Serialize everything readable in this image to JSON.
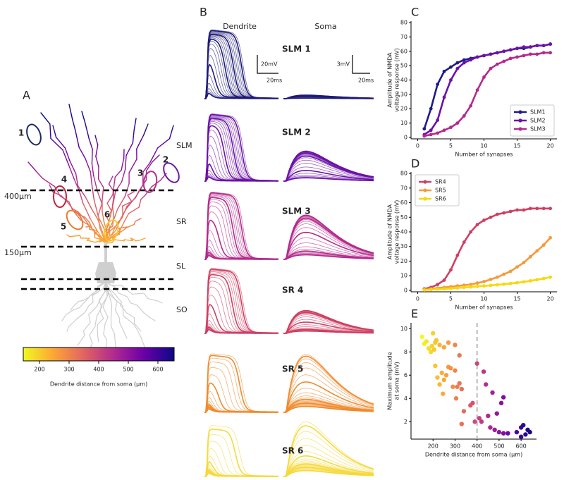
{
  "panel_labels": [
    "A",
    "B",
    "C",
    "D",
    "E"
  ],
  "neuron": {
    "layers": [
      "SLM",
      "SR",
      "SL",
      "SO"
    ],
    "depths": [
      "400µm",
      "150µm"
    ],
    "sites": [
      "1",
      "2",
      "3",
      "4",
      "5",
      "6"
    ],
    "site_colors": [
      "#1d2a5e",
      "#6a1aa6",
      "#b32f8c",
      "#c8203e",
      "#ec7a2a",
      "#f2c82e"
    ],
    "colorbar": {
      "label": "Dendrite distance from soma (µm)",
      "lim": [
        150,
        650
      ],
      "ticks": [
        200,
        300,
        400,
        500,
        600
      ],
      "colormap": [
        "#f0f921",
        "#fca636",
        "#e16462",
        "#b12a90",
        "#6a00a8",
        "#0d0887"
      ]
    }
  },
  "traces": {
    "columns": [
      "Dendrite",
      "Soma"
    ],
    "rows": [
      "SLM 1",
      "SLM 2",
      "SLM 3",
      "SR 4",
      "SR 5",
      "SR 6"
    ],
    "colors": [
      "#1f1a78",
      "#6b12a8",
      "#b5298c",
      "#cf3f62",
      "#f08a2c",
      "#f6d93a"
    ],
    "scale_dendrite": [
      "20mV",
      "20ms"
    ],
    "scale_soma": [
      "3mV",
      "20ms"
    ]
  },
  "chart_data": [
    {
      "type": "line",
      "xlabel": "Number of synapses",
      "ylabel": [
        "Amplitude of NMDA",
        "voltage response (mV)"
      ],
      "x": [
        1,
        2,
        3,
        4,
        5,
        6,
        7,
        8,
        9,
        10,
        11,
        12,
        13,
        14,
        15,
        16,
        17,
        18,
        19,
        20
      ],
      "series": [
        {
          "name": "SLM1",
          "color": "#1f1a8a",
          "values": [
            6,
            20,
            37,
            46,
            49,
            52,
            54,
            55,
            56,
            57,
            58,
            59,
            60,
            61,
            62,
            62,
            63,
            64,
            64,
            65
          ]
        },
        {
          "name": "SLM2",
          "color": "#6b12a8",
          "values": [
            2,
            5,
            12,
            28,
            40,
            48,
            52,
            54,
            56,
            57,
            58,
            59,
            60,
            61,
            62,
            63,
            63,
            64,
            64,
            65
          ]
        },
        {
          "name": "SLM3",
          "color": "#b5298c",
          "values": [
            1,
            2,
            3,
            5,
            7,
            10,
            15,
            22,
            33,
            42,
            48,
            51,
            53,
            55,
            56,
            57,
            58,
            58,
            59,
            59
          ]
        }
      ],
      "xlim": [
        -1,
        21
      ],
      "ylim": [
        -1,
        81
      ],
      "xticks": [
        0,
        5,
        10,
        15,
        20
      ],
      "yticks": [
        0,
        10,
        20,
        30,
        40,
        50,
        60,
        70,
        80
      ],
      "legend": "lower right"
    },
    {
      "type": "line",
      "xlabel": "Number of synapses",
      "ylabel": [
        "Amplitude of NMDA",
        "voltage response (mV)"
      ],
      "x": [
        1,
        2,
        3,
        4,
        5,
        6,
        7,
        8,
        9,
        10,
        11,
        12,
        13,
        14,
        15,
        16,
        17,
        18,
        19,
        20
      ],
      "series": [
        {
          "name": "SR4",
          "color": "#cf3f62",
          "values": [
            1,
            2,
            4,
            7,
            14,
            24,
            33,
            40,
            45,
            48,
            50,
            52,
            53,
            54,
            55,
            55,
            56,
            56,
            56,
            56
          ]
        },
        {
          "name": "SR5",
          "color": "#f59a3a",
          "values": [
            0.5,
            1,
            1.5,
            2,
            2.5,
            3,
            3.5,
            4,
            5,
            6,
            7.5,
            9,
            11,
            13,
            16,
            19,
            23,
            27,
            31,
            36
          ]
        },
        {
          "name": "SR6",
          "color": "#f5d90a",
          "values": [
            0.2,
            0.5,
            0.8,
            1,
            1.3,
            1.6,
            2,
            2.3,
            2.7,
            3,
            3.4,
            3.8,
            4.2,
            4.7,
            5.2,
            5.8,
            6.5,
            7.3,
            8.1,
            9
          ]
        }
      ],
      "xlim": [
        -1,
        21
      ],
      "ylim": [
        -1,
        81
      ],
      "xticks": [
        0,
        5,
        10,
        15,
        20
      ],
      "yticks": [
        0,
        10,
        20,
        30,
        40,
        50,
        60,
        70,
        80
      ],
      "legend": "upper left"
    },
    {
      "type": "scatter",
      "xlabel": "Dendrite distance from soma (µm)",
      "ylabel": [
        "Maximum amplitude",
        "at soma (mV)"
      ],
      "x": [
        150,
        160,
        170,
        180,
        190,
        195,
        200,
        205,
        210,
        215,
        230,
        250,
        270,
        300,
        320,
        210,
        220,
        230,
        240,
        245,
        250,
        260,
        270,
        280,
        290,
        300,
        305,
        310,
        320,
        330,
        340,
        370,
        380,
        330,
        390,
        400,
        410,
        420,
        430,
        440,
        450,
        460,
        470,
        480,
        490,
        500,
        510,
        520,
        520,
        540,
        580,
        600,
        610,
        620,
        630,
        640,
        600
      ],
      "values": [
        9.3,
        8.7,
        8.9,
        8.3,
        8.0,
        8.5,
        9.6,
        8.2,
        8.8,
        9.0,
        8.6,
        8.4,
        8.8,
        8.6,
        7.7,
        6.8,
        5.8,
        5.2,
        6.2,
        4.4,
        5.6,
        6.0,
        6.7,
        6.6,
        5.0,
        6.4,
        4.0,
        5.0,
        5.3,
        4.8,
        2.9,
        3.4,
        3.6,
        1.8,
        2.0,
        7.0,
        2.3,
        2.0,
        6.3,
        5.2,
        2.5,
        1.5,
        4.5,
        1.3,
        2.7,
        1.1,
        3.6,
        4.1,
        1.0,
        1.0,
        1.1,
        1.5,
        1.7,
        0.9,
        1.3,
        1.1,
        0.7
      ],
      "xlim": [
        100,
        670
      ],
      "ylim": [
        0.5,
        10.5
      ],
      "xticks": [
        200,
        300,
        400,
        500,
        600
      ],
      "yticks": [
        2,
        4,
        6,
        8,
        10
      ],
      "vline": 400
    }
  ]
}
